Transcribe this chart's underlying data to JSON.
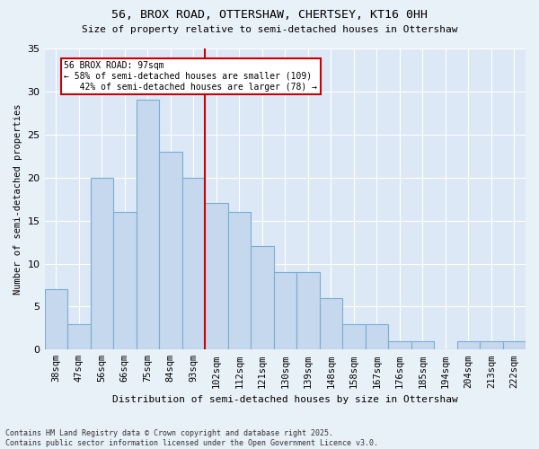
{
  "title1": "56, BROX ROAD, OTTERSHAW, CHERTSEY, KT16 0HH",
  "title2": "Size of property relative to semi-detached houses in Ottershaw",
  "xlabel": "Distribution of semi-detached houses by size in Ottershaw",
  "ylabel": "Number of semi-detached properties",
  "categories": [
    "38sqm",
    "47sqm",
    "56sqm",
    "66sqm",
    "75sqm",
    "84sqm",
    "93sqm",
    "102sqm",
    "112sqm",
    "121sqm",
    "130sqm",
    "139sqm",
    "148sqm",
    "158sqm",
    "167sqm",
    "176sqm",
    "185sqm",
    "194sqm",
    "204sqm",
    "213sqm",
    "222sqm"
  ],
  "values": [
    7,
    3,
    20,
    16,
    29,
    23,
    20,
    17,
    16,
    12,
    9,
    9,
    6,
    3,
    3,
    1,
    1,
    0,
    1,
    1,
    1
  ],
  "bar_color": "#c5d8ed",
  "bar_edge_color": "#7aadd4",
  "vline_x_idx": 6.5,
  "vline_color": "#cc0000",
  "annotation_text": "56 BROX ROAD: 97sqm\n← 58% of semi-detached houses are smaller (109)\n   42% of semi-detached houses are larger (78) →",
  "annotation_box_color": "#cc0000",
  "ylim": [
    0,
    35
  ],
  "yticks": [
    0,
    5,
    10,
    15,
    20,
    25,
    30,
    35
  ],
  "footnote": "Contains HM Land Registry data © Crown copyright and database right 2025.\nContains public sector information licensed under the Open Government Licence v3.0.",
  "background_color": "#e8f0f8",
  "plot_bg_color": "#dce8f5",
  "title1_fontsize": 9.5,
  "title2_fontsize": 8,
  "xlabel_fontsize": 8,
  "ylabel_fontsize": 7.5,
  "tick_fontsize": 7.5,
  "ytick_fontsize": 8,
  "footnote_fontsize": 6
}
